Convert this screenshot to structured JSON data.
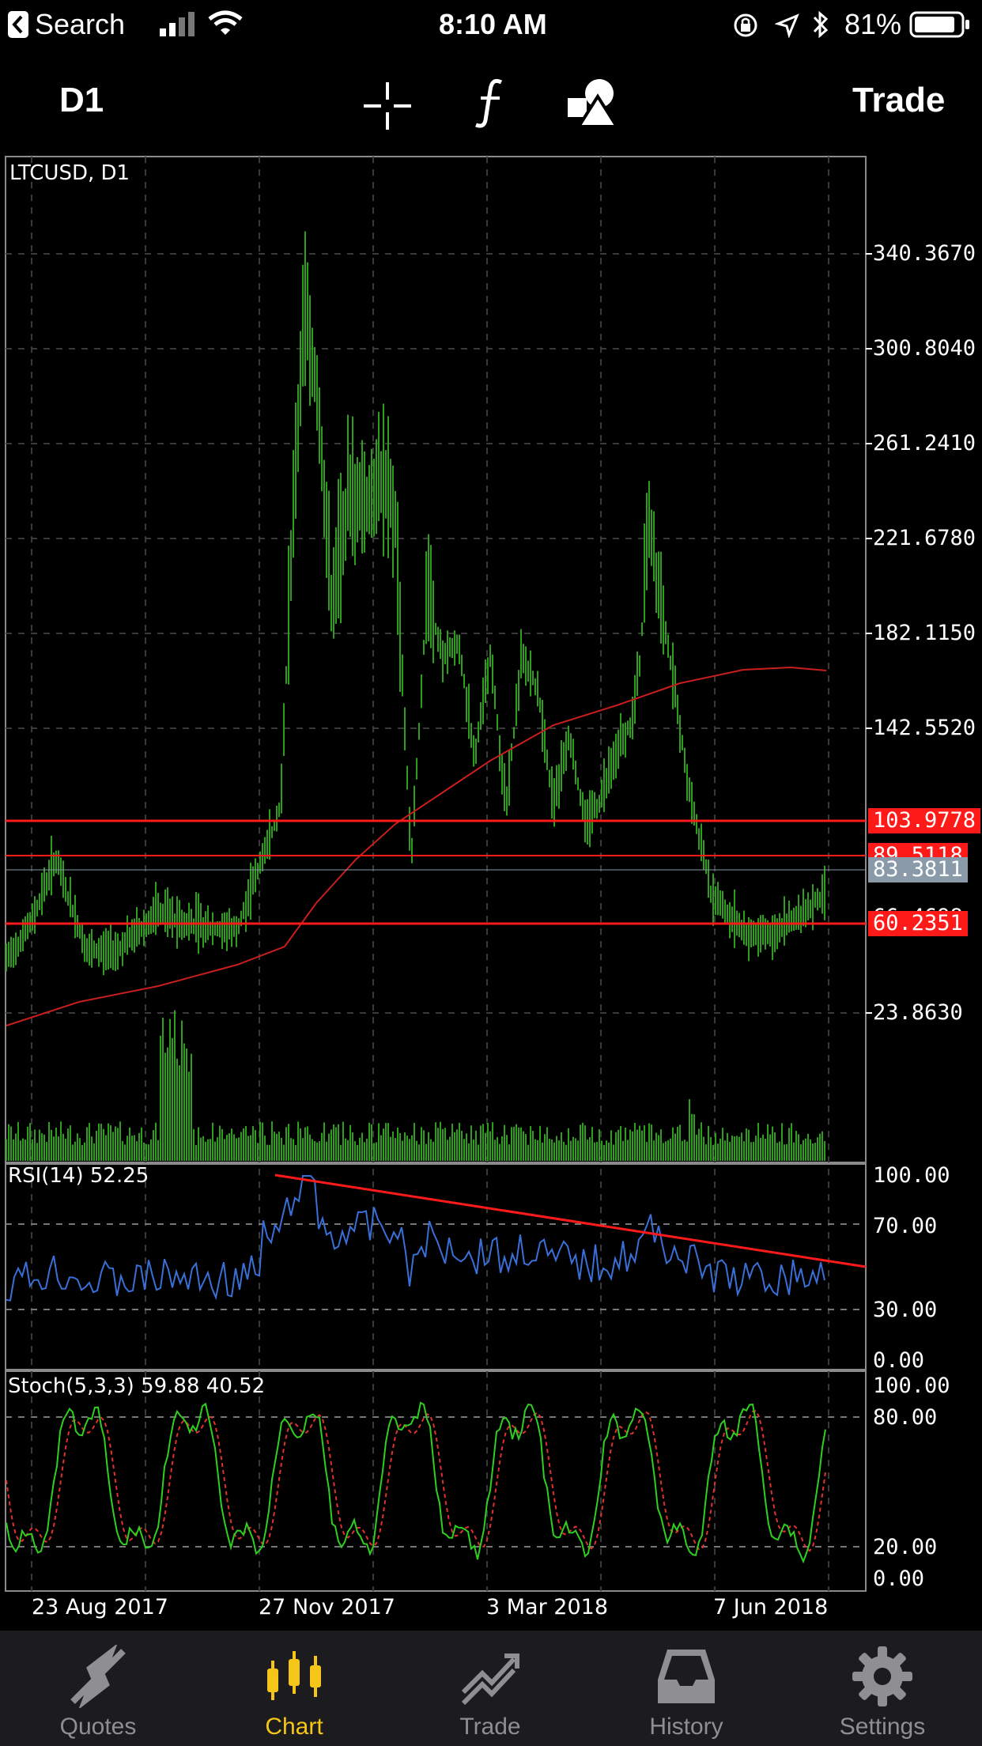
{
  "status_bar": {
    "back_label": "Search",
    "time": "8:10 AM",
    "battery": "81%"
  },
  "toolbar": {
    "timeframe": "D1",
    "trade_label": "Trade",
    "crosshair_icon": "crosshair-icon",
    "indicator_icon": "function-icon",
    "objects_icon": "shapes-icon"
  },
  "chart": {
    "symbol_title": "LTCUSD, D1",
    "price_axis": [
      "340.3670",
      "300.8040",
      "261.2410",
      "221.6780",
      "182.1150",
      "142.5520",
      "23.8630"
    ],
    "price_levels": {
      "upper_red": "103.9778",
      "mid_red": "89.5118",
      "current": "83.3811",
      "lower_hidden": "66.4698",
      "lower_red": "60.2351"
    },
    "rsi_title": "RSI(14) 52.25",
    "rsi_axis": [
      "100.00",
      "70.00",
      "30.00",
      "0.00"
    ],
    "stoch_title": "Stoch(5,3,3) 59.88 40.52",
    "stoch_axis": [
      "100.00",
      "80.00",
      "20.00",
      "0.00"
    ],
    "dates": [
      "23 Aug 2017",
      "27 Nov 2017",
      "3 Mar 2018",
      "7 Jun 2018"
    ],
    "colors": {
      "candles": "#2f9e1f",
      "ma": "#c81e1e",
      "levels": "#ff1a1a",
      "rsi": "#3a6fd8",
      "stoch_main": "#2fcf1f",
      "stoch_signal": "#e03030",
      "grid": "#3a3a3a"
    }
  },
  "tabs": [
    {
      "label": "Quotes",
      "icon": "quotes-icon"
    },
    {
      "label": "Chart",
      "icon": "chart-icon",
      "active": true
    },
    {
      "label": "Trade",
      "icon": "trade-icon"
    },
    {
      "label": "History",
      "icon": "history-icon"
    },
    {
      "label": "Settings",
      "icon": "settings-icon"
    }
  ]
}
